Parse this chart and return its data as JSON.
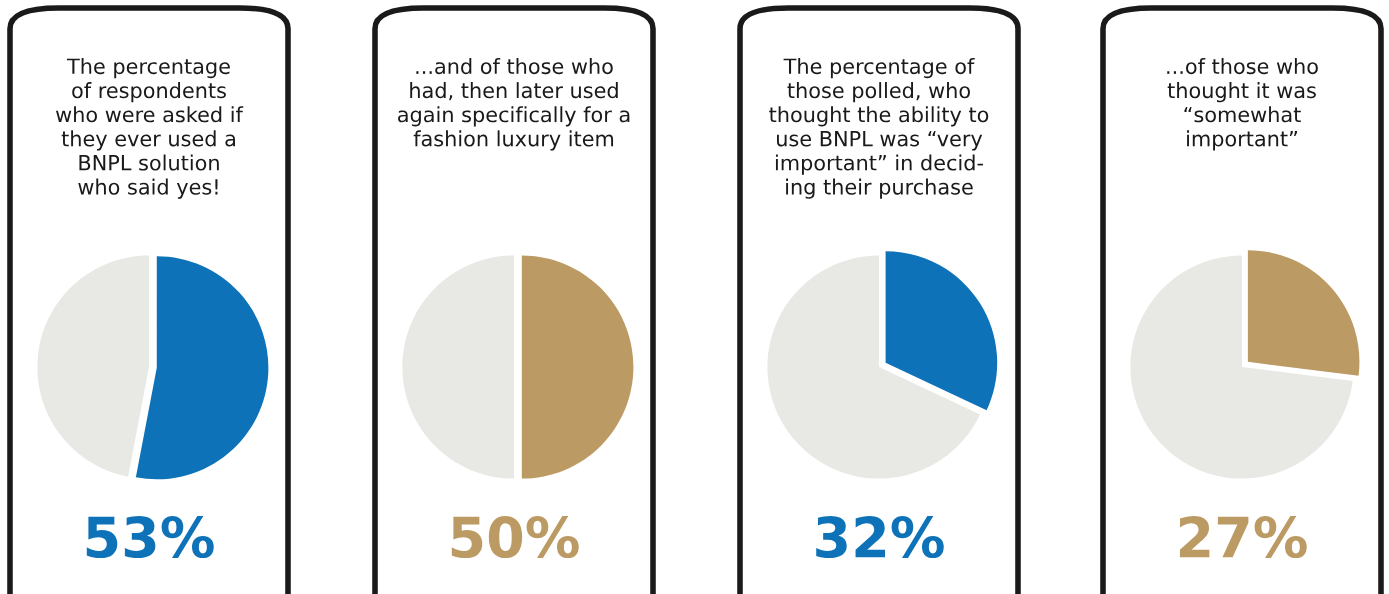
{
  "chart_data": [
    {
      "type": "pie",
      "title": "The percentage\nof respondents\nwho were asked if\nthey ever used a\nBNPL solution\nwho said yes!",
      "categories": [
        null,
        null
      ],
      "values": [
        53,
        47
      ],
      "colors": [
        "#0e72b8",
        "#e8e8e4"
      ],
      "annotations": [
        "53%"
      ]
    },
    {
      "type": "pie",
      "title": "...and of those who\nhad, then later used\nagain specifically for a\nfashion luxury item",
      "categories": [
        null,
        null
      ],
      "values": [
        50,
        50
      ],
      "colors": [
        "#bc9a64",
        "#e8e8e4"
      ],
      "annotations": [
        "50%"
      ]
    },
    {
      "type": "pie",
      "title": "The percentage of\nthose polled, who\nthought the ability to\nuse BNPL was “very\nimportant” in decid-\ning their purchase",
      "categories": [
        null,
        null
      ],
      "values": [
        32,
        68
      ],
      "colors": [
        "#0e72b8",
        "#e8e8e4"
      ],
      "annotations": [
        "32%"
      ]
    },
    {
      "type": "pie",
      "title": "...of those who\nthought it was\n“somewhat\nimportant”",
      "categories": [
        null,
        null
      ],
      "values": [
        27,
        73
      ],
      "colors": [
        "#bc9a64",
        "#e8e8e4"
      ],
      "annotations": [
        "27%"
      ]
    }
  ]
}
